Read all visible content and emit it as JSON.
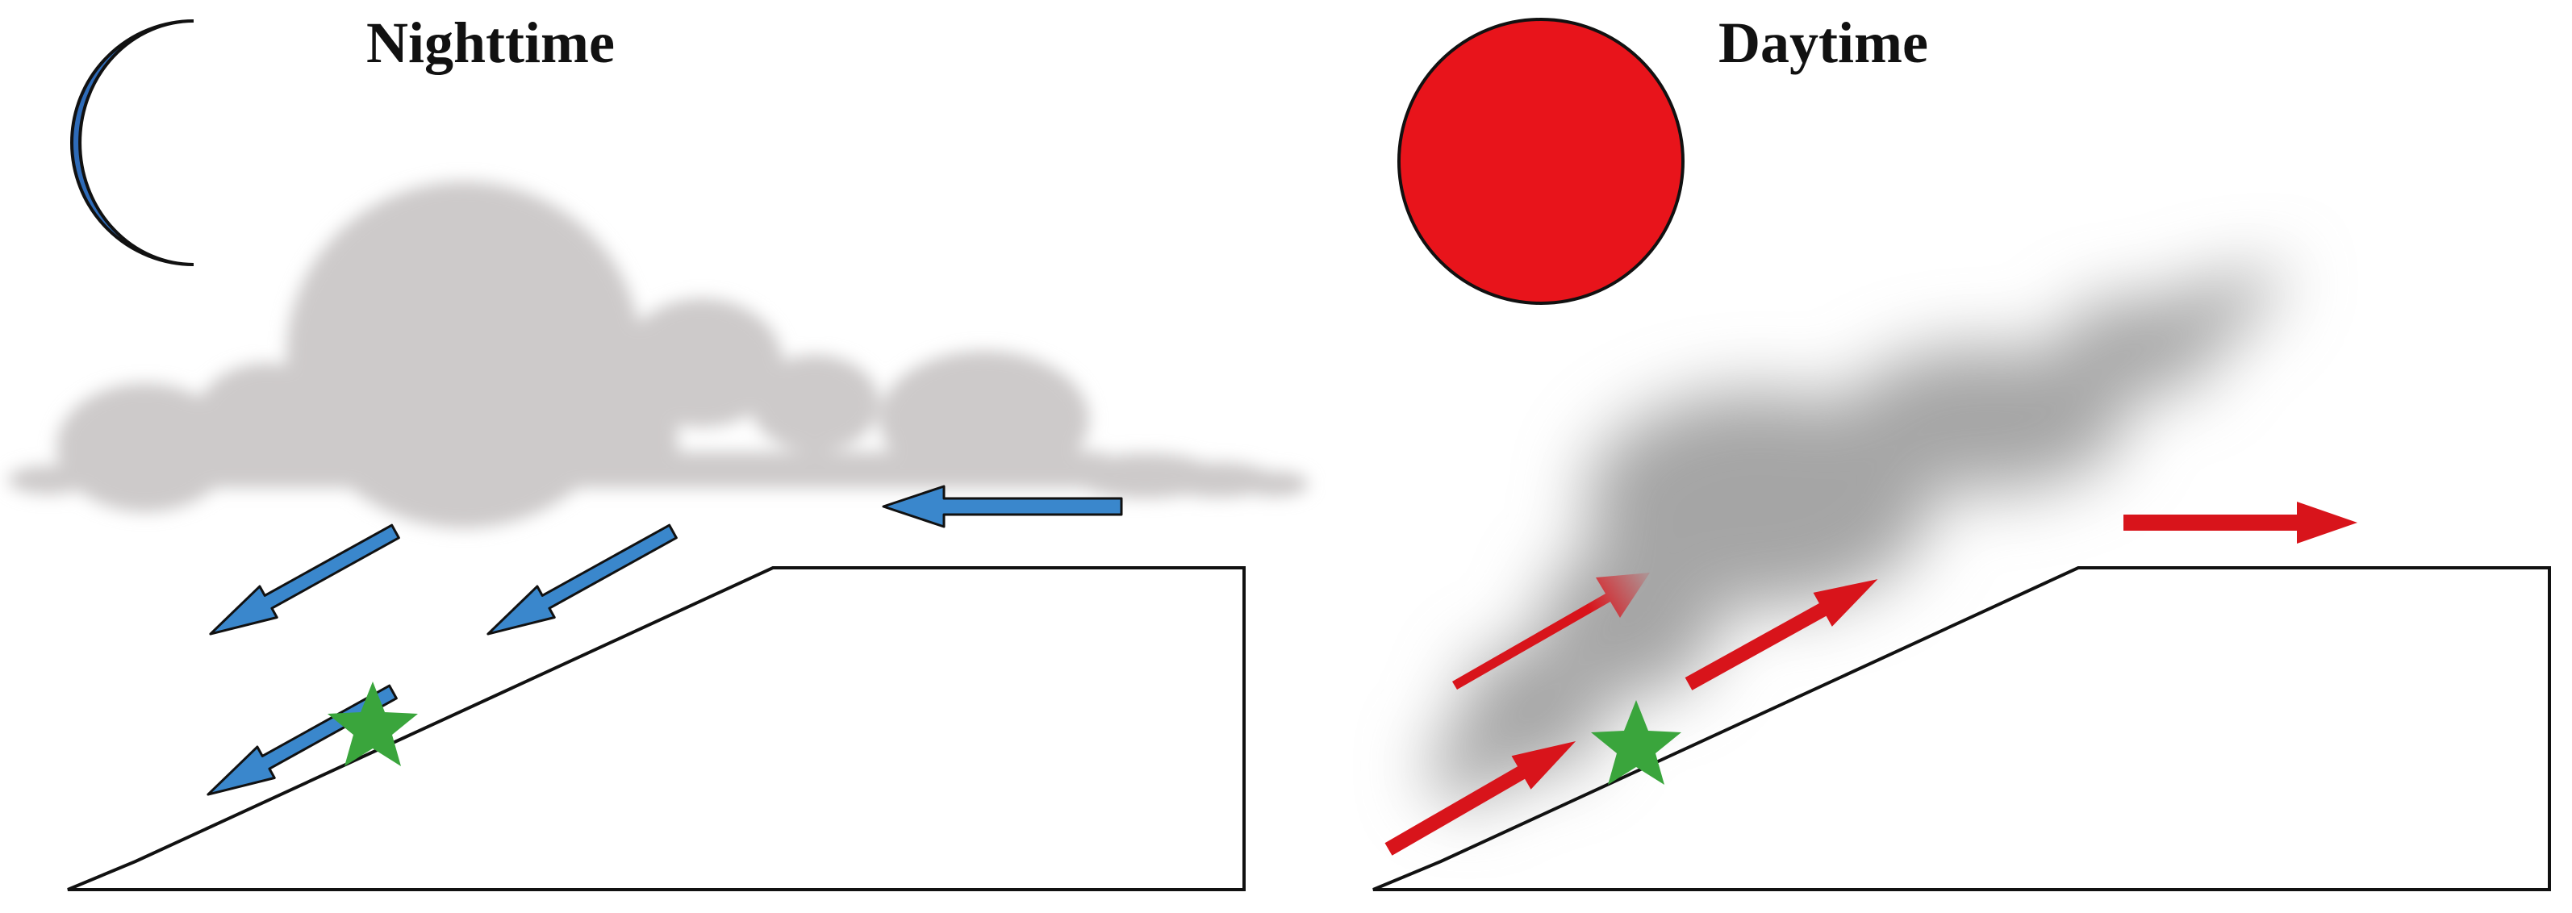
{
  "panels": {
    "night": {
      "title": "Nighttime"
    },
    "day": {
      "title": "Daytime"
    }
  },
  "colors": {
    "moon": "#2e6bb8",
    "sun": "#e8141b",
    "night_arrow": "#3a87cc",
    "day_arrow": "#d8141b",
    "star": "#3aa53c",
    "night_cloud": "#cdcaca",
    "day_plume": "#a5a5a5",
    "terrain_outline": "#111111"
  },
  "icons": {
    "night": "moon-icon",
    "day": "sun-icon",
    "marker": "star-icon"
  }
}
